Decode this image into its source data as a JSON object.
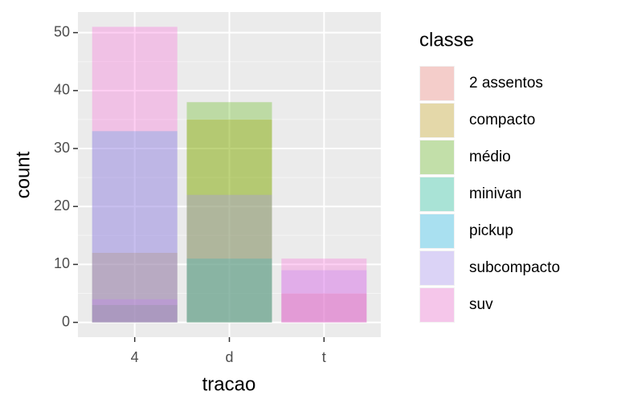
{
  "chart_data": {
    "type": "bar",
    "x_label": "tracao",
    "y_label": "count",
    "legend_title": "classe",
    "categories": [
      "4",
      "d",
      "t"
    ],
    "series": [
      {
        "name": "2 assentos",
        "color": "#F8766D",
        "values": [
          null,
          null,
          5
        ]
      },
      {
        "name": "compacto",
        "color": "#C49A00",
        "values": [
          12,
          35,
          null
        ]
      },
      {
        "name": "médio",
        "color": "#53B400",
        "values": [
          3,
          38,
          null
        ]
      },
      {
        "name": "minivan",
        "color": "#00C094",
        "values": [
          null,
          11,
          null
        ]
      },
      {
        "name": "pickup",
        "color": "#00B6EB",
        "values": [
          33,
          null,
          null
        ]
      },
      {
        "name": "subcompacto",
        "color": "#A58AFF",
        "values": [
          4,
          22,
          9
        ]
      },
      {
        "name": "suv",
        "color": "#FB61D7",
        "values": [
          51,
          null,
          11
        ]
      }
    ],
    "alpha": 0.3,
    "ylim": [
      -2.55,
      53.55
    ],
    "yticks": [
      0,
      10,
      20,
      30,
      40,
      50
    ],
    "grid": true
  }
}
